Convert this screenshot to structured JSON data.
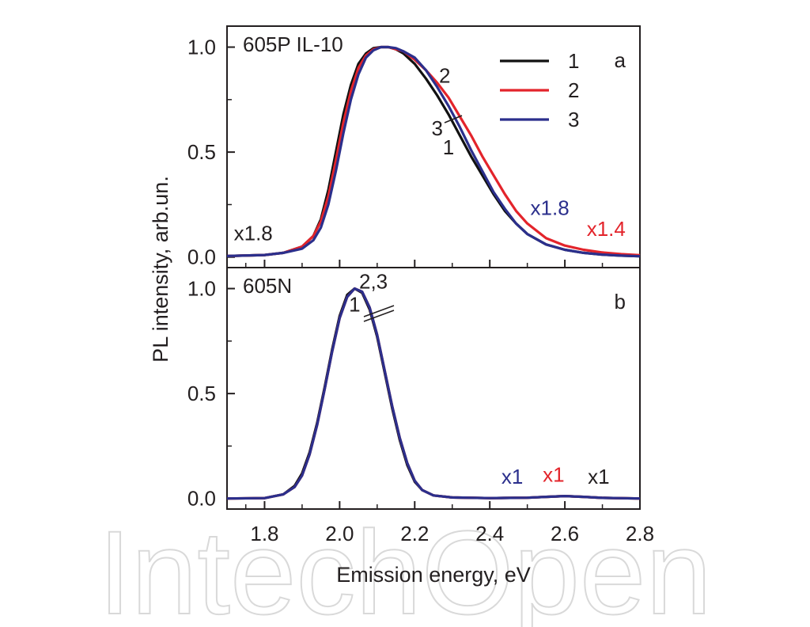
{
  "watermark": "IntechOpen",
  "ylabel": "PL intensity, arb.un.",
  "xlabel": "Emission energy, eV",
  "chart_data": [
    {
      "type": "line",
      "panel": "a",
      "panel_label": "a",
      "sample_label": "605P IL-10",
      "xlim": [
        1.7,
        2.8
      ],
      "ylim": [
        -0.05,
        1.1
      ],
      "x_ticks": [
        1.8,
        2.0,
        2.2,
        2.4,
        2.6,
        2.8
      ],
      "y_ticks": [
        0.0,
        0.5,
        1.0
      ],
      "y_tick_labels": [
        "0.0",
        "0.5",
        "1.0"
      ],
      "legend": {
        "position": "top-right",
        "entries": [
          "1",
          "2",
          "3"
        ]
      },
      "series": [
        {
          "name": "1",
          "color": "#111111",
          "x": [
            1.7,
            1.8,
            1.85,
            1.9,
            1.93,
            1.95,
            1.97,
            1.99,
            2.01,
            2.03,
            2.05,
            2.07,
            2.09,
            2.11,
            2.13,
            2.15,
            2.17,
            2.2,
            2.23,
            2.26,
            2.29,
            2.32,
            2.35,
            2.38,
            2.41,
            2.44,
            2.47,
            2.5,
            2.55,
            2.6,
            2.65,
            2.7,
            2.75,
            2.8
          ],
          "y": [
            0.005,
            0.01,
            0.02,
            0.05,
            0.1,
            0.18,
            0.32,
            0.5,
            0.68,
            0.82,
            0.92,
            0.97,
            0.995,
            1.0,
            1.0,
            0.99,
            0.97,
            0.92,
            0.85,
            0.77,
            0.68,
            0.58,
            0.48,
            0.39,
            0.3,
            0.22,
            0.16,
            0.11,
            0.06,
            0.035,
            0.02,
            0.012,
            0.007,
            0.004
          ]
        },
        {
          "name": "2",
          "color": "#e3242b",
          "x": [
            1.7,
            1.8,
            1.85,
            1.9,
            1.93,
            1.95,
            1.97,
            1.99,
            2.01,
            2.03,
            2.05,
            2.07,
            2.09,
            2.11,
            2.13,
            2.15,
            2.17,
            2.2,
            2.23,
            2.26,
            2.29,
            2.32,
            2.35,
            2.38,
            2.41,
            2.44,
            2.47,
            2.5,
            2.55,
            2.6,
            2.65,
            2.7,
            2.75,
            2.8
          ],
          "y": [
            0.005,
            0.01,
            0.02,
            0.05,
            0.1,
            0.17,
            0.29,
            0.46,
            0.64,
            0.79,
            0.9,
            0.96,
            0.99,
            1.0,
            1.0,
            0.99,
            0.98,
            0.94,
            0.89,
            0.83,
            0.76,
            0.67,
            0.58,
            0.48,
            0.39,
            0.3,
            0.22,
            0.16,
            0.09,
            0.055,
            0.035,
            0.022,
            0.014,
            0.009
          ]
        },
        {
          "name": "3",
          "color": "#2b2f8c",
          "x": [
            1.7,
            1.8,
            1.85,
            1.9,
            1.93,
            1.95,
            1.97,
            1.99,
            2.01,
            2.03,
            2.05,
            2.07,
            2.09,
            2.11,
            2.13,
            2.15,
            2.17,
            2.2,
            2.23,
            2.26,
            2.29,
            2.32,
            2.35,
            2.38,
            2.41,
            2.44,
            2.47,
            2.5,
            2.55,
            2.6,
            2.65,
            2.7,
            2.75,
            2.8
          ],
          "y": [
            0.005,
            0.01,
            0.02,
            0.04,
            0.08,
            0.14,
            0.25,
            0.41,
            0.59,
            0.75,
            0.87,
            0.95,
            0.985,
            1.0,
            1.0,
            0.995,
            0.98,
            0.95,
            0.89,
            0.81,
            0.72,
            0.62,
            0.51,
            0.41,
            0.31,
            0.23,
            0.16,
            0.11,
            0.06,
            0.035,
            0.02,
            0.012,
            0.007,
            0.004
          ]
        }
      ],
      "annotations": [
        {
          "text": "x1.8",
          "color": "#231f20",
          "x": 1.77,
          "y": 0.08
        },
        {
          "text": "x1.8",
          "color": "#2b2f8c",
          "x": 2.56,
          "y": 0.2
        },
        {
          "text": "x1.4",
          "color": "#e3242b",
          "x": 2.71,
          "y": 0.1
        },
        {
          "text": "2",
          "color": "#231f20",
          "x": 2.28,
          "y": 0.83
        },
        {
          "text": "3",
          "color": "#231f20",
          "x": 2.26,
          "y": 0.58
        },
        {
          "text": "1",
          "color": "#231f20",
          "x": 2.29,
          "y": 0.49
        }
      ]
    },
    {
      "type": "line",
      "panel": "b",
      "panel_label": "b",
      "sample_label": "605N",
      "xlim": [
        1.7,
        2.8
      ],
      "ylim": [
        -0.05,
        1.1
      ],
      "x_ticks": [
        1.8,
        2.0,
        2.2,
        2.4,
        2.6,
        2.8
      ],
      "x_tick_labels": [
        "1.8",
        "2.0",
        "2.2",
        "2.4",
        "2.6",
        "2.8"
      ],
      "y_ticks": [
        0.0,
        0.5,
        1.0
      ],
      "y_tick_labels": [
        "0.0",
        "0.5",
        "1.0"
      ],
      "series": [
        {
          "name": "1",
          "color": "#111111",
          "x": [
            1.7,
            1.8,
            1.85,
            1.88,
            1.9,
            1.92,
            1.94,
            1.96,
            1.98,
            2.0,
            2.02,
            2.04,
            2.06,
            2.08,
            2.1,
            2.12,
            2.14,
            2.16,
            2.18,
            2.2,
            2.22,
            2.25,
            2.3,
            2.4,
            2.5,
            2.55,
            2.6,
            2.65,
            2.7,
            2.8
          ],
          "y": [
            0.0,
            0.002,
            0.02,
            0.06,
            0.12,
            0.22,
            0.36,
            0.53,
            0.71,
            0.87,
            0.97,
            1.0,
            0.98,
            0.9,
            0.77,
            0.6,
            0.43,
            0.28,
            0.16,
            0.08,
            0.04,
            0.015,
            0.005,
            0.002,
            0.004,
            0.008,
            0.012,
            0.008,
            0.003,
            0.0
          ]
        },
        {
          "name": "2",
          "color": "#e3242b",
          "x": [
            1.7,
            1.8,
            1.85,
            1.88,
            1.9,
            1.92,
            1.94,
            1.96,
            1.98,
            2.0,
            2.02,
            2.04,
            2.06,
            2.08,
            2.1,
            2.12,
            2.14,
            2.16,
            2.18,
            2.2,
            2.22,
            2.25,
            2.3,
            2.4,
            2.5,
            2.55,
            2.6,
            2.65,
            2.7,
            2.8
          ],
          "y": [
            0.0,
            0.002,
            0.02,
            0.055,
            0.11,
            0.21,
            0.35,
            0.52,
            0.7,
            0.86,
            0.96,
            1.0,
            0.985,
            0.91,
            0.78,
            0.61,
            0.44,
            0.29,
            0.17,
            0.085,
            0.04,
            0.015,
            0.005,
            0.002,
            0.004,
            0.008,
            0.012,
            0.008,
            0.003,
            0.0
          ]
        },
        {
          "name": "3",
          "color": "#2b2f8c",
          "x": [
            1.7,
            1.8,
            1.85,
            1.88,
            1.9,
            1.92,
            1.94,
            1.96,
            1.98,
            2.0,
            2.02,
            2.04,
            2.06,
            2.08,
            2.1,
            2.12,
            2.14,
            2.16,
            2.18,
            2.2,
            2.22,
            2.25,
            2.3,
            2.4,
            2.5,
            2.55,
            2.6,
            2.65,
            2.7,
            2.8
          ],
          "y": [
            0.0,
            0.002,
            0.02,
            0.055,
            0.11,
            0.21,
            0.35,
            0.52,
            0.7,
            0.86,
            0.96,
            1.0,
            0.985,
            0.91,
            0.78,
            0.61,
            0.44,
            0.29,
            0.17,
            0.085,
            0.04,
            0.015,
            0.005,
            0.002,
            0.004,
            0.008,
            0.012,
            0.008,
            0.003,
            0.0
          ]
        }
      ],
      "annotations": [
        {
          "text": "x1",
          "color": "#2b2f8c",
          "x": 2.46,
          "y": 0.07
        },
        {
          "text": "x1",
          "color": "#e3242b",
          "x": 2.57,
          "y": 0.08
        },
        {
          "text": "x1",
          "color": "#231f20",
          "x": 2.69,
          "y": 0.07
        },
        {
          "text": "2,3",
          "color": "#231f20",
          "x": 2.09,
          "y": 1.0
        },
        {
          "text": "1",
          "color": "#231f20",
          "x": 2.04,
          "y": 0.89
        }
      ]
    }
  ]
}
